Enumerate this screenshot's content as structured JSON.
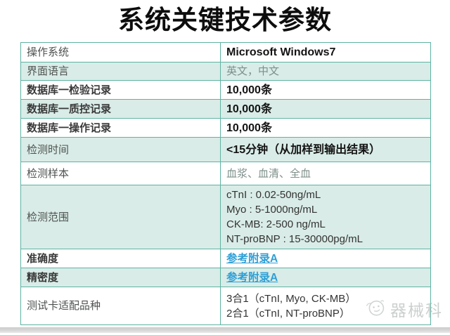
{
  "page": {
    "title": "系统关键技术参数",
    "watermark": {
      "text": "器械科",
      "logo_icon": "face-logo-icon"
    }
  },
  "table": {
    "rows": [
      {
        "label": "操作系统",
        "value": "Microsoft Windows7",
        "style": "bold"
      },
      {
        "label": "界面语言",
        "value": "英文，中文",
        "style": "muted"
      },
      {
        "label": "数据库一检验记录",
        "value": "10,000条",
        "style": "bold"
      },
      {
        "label": "数据库一质控记录",
        "value": "10,000条",
        "style": "bold"
      },
      {
        "label": "数据库一操作记录",
        "value": "10,000条",
        "style": "bold"
      },
      {
        "label": "检测时间",
        "value": "<15分钟（从加样到输出结果）",
        "style": "bold"
      },
      {
        "label": "检测样本",
        "value": "血浆、血清、全血",
        "style": "muted"
      },
      {
        "label": "检测范围",
        "value": [
          "cTnI : 0.02-50ng/mL",
          "Myo : 5-1000ng/mL",
          "CK-MB: 2-500 ng/mL",
          "NT-proBNP : 15-30000pg/mL"
        ],
        "style": "lines"
      },
      {
        "label": "准确度",
        "value": "参考附录A",
        "style": "link"
      },
      {
        "label": "精密度",
        "value": "参考附录A",
        "style": "link"
      },
      {
        "label": "测试卡适配品种",
        "value": [
          "3合1（cTnI, Myo, CK-MB）",
          "2合1（cTnI, NT-proBNP）"
        ],
        "style": "lines"
      }
    ]
  },
  "colors": {
    "table_border": "#5fb3a3",
    "row_tint": "#d9ece7",
    "link": "#2e9fd6",
    "title_text": "#0d0d0d"
  }
}
